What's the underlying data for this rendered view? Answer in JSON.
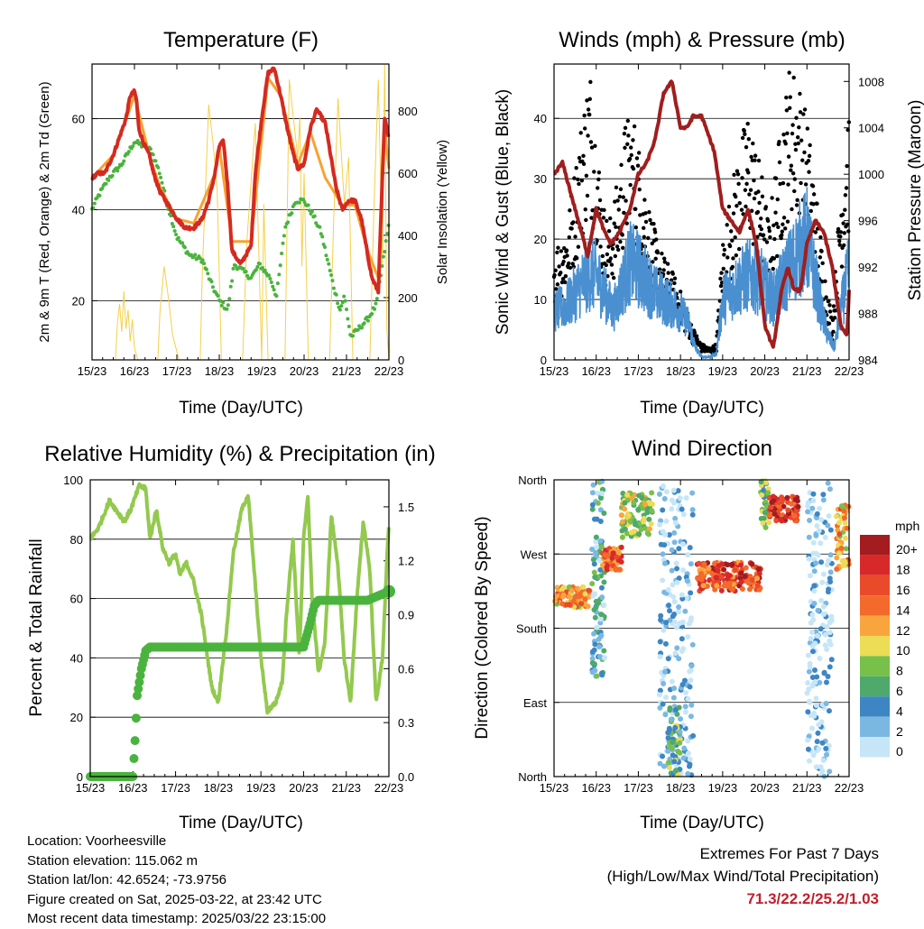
{
  "chart_data": [
    {
      "type": "line",
      "title": "Temperature (F)",
      "xlabel": "Time (Day/UTC)",
      "ylabel": "2m & 9m T (Red, Orange) & 2m Td (Green)",
      "y2label": "Solar Insolation (Yellow)",
      "x_ticks": [
        "15/23",
        "16/23",
        "17/23",
        "18/23",
        "19/23",
        "20/23",
        "21/23",
        "22/23"
      ],
      "ylim": [
        7,
        72
      ],
      "y_ticks": [
        20,
        40,
        60
      ],
      "y2lim": [
        0,
        950
      ],
      "y2_ticks": [
        0,
        200,
        400,
        600,
        800
      ],
      "colors": {
        "t2m": "#d42a20",
        "t9m": "#f7a230",
        "td": "#4ab33e",
        "solar": "#f5d04a"
      },
      "series": [
        {
          "key": "t2m",
          "x": [
            0,
            0.15,
            0.3,
            0.5,
            0.65,
            0.8,
            0.9,
            1.0,
            1.05,
            1.1,
            1.2,
            1.3,
            1.35,
            1.45,
            1.6,
            1.8,
            2.0,
            2.2,
            2.4,
            2.6,
            2.75,
            2.9,
            3.0,
            3.1,
            3.2,
            3.3,
            3.5,
            3.75,
            3.85,
            4.0,
            4.15,
            4.3,
            4.45,
            4.6,
            4.75,
            4.85,
            5.0,
            5.15,
            5.3,
            5.5,
            5.75,
            5.9,
            6.05,
            6.2,
            6.35,
            6.5,
            6.6,
            6.75,
            6.85,
            6.9,
            7.0
          ],
          "values": [
            47,
            48,
            48,
            52,
            56,
            60,
            65,
            66,
            64,
            58,
            55,
            53,
            52,
            48,
            44,
            41,
            38,
            36,
            36,
            38,
            42,
            48,
            54,
            55,
            45,
            31,
            28,
            32,
            48,
            60,
            70,
            71,
            65,
            58,
            52,
            49,
            50,
            58,
            62,
            59,
            45,
            40,
            42,
            42,
            38,
            30,
            25,
            22,
            48,
            60,
            56
          ]
        },
        {
          "key": "t9m",
          "x": [
            0,
            0.5,
            1.0,
            1.35,
            1.6,
            2.0,
            2.4,
            2.9,
            3.0,
            3.3,
            3.75,
            4.15,
            4.45,
            4.85,
            5.15,
            5.5,
            5.9,
            6.2,
            6.5,
            6.75,
            6.9,
            7.0
          ],
          "values": [
            47,
            52,
            65,
            52,
            45,
            38,
            37,
            48,
            54,
            33,
            33,
            69,
            65,
            50,
            57,
            47,
            41,
            41,
            31,
            25,
            58,
            49
          ]
        },
        {
          "key": "td",
          "x": [
            0,
            0.15,
            0.4,
            0.7,
            1.0,
            1.2,
            1.4,
            1.6,
            1.75,
            2.0,
            2.3,
            2.6,
            2.8,
            3.0,
            3.2,
            3.35,
            3.5,
            3.75,
            3.95,
            4.2,
            4.35,
            4.55,
            4.8,
            5.0,
            5.2,
            5.4,
            5.55,
            5.7,
            5.85,
            5.95,
            6.1,
            6.3,
            6.5,
            6.7,
            6.85,
            7.0
          ],
          "values": [
            40,
            43,
            47,
            50,
            55,
            54,
            53,
            48,
            42,
            34,
            30,
            29,
            24,
            20,
            18,
            28,
            27,
            25,
            28,
            25,
            21,
            36,
            42,
            42,
            39,
            35,
            29,
            23,
            18,
            21,
            12,
            14,
            16,
            19,
            28,
            37
          ]
        },
        {
          "key": "solar",
          "x": [
            0.55,
            0.6,
            0.65,
            0.7,
            0.75,
            0.8,
            0.85,
            0.9,
            0.95,
            1.0,
            1.08,
            1.55,
            1.6,
            1.7,
            1.8,
            1.9,
            2.05,
            2.55,
            2.6,
            2.75,
            2.85,
            2.95,
            3.05,
            3.55,
            3.65,
            3.85,
            4.0,
            4.05,
            4.15,
            4.55,
            4.65,
            4.85,
            4.9,
            4.95,
            5.0,
            5.1,
            5.6,
            5.7,
            5.8,
            5.95,
            6.05,
            6.15,
            6.55,
            6.65,
            6.75,
            6.85,
            6.9,
            6.95,
            7.0
          ],
          "values": [
            0,
            120,
            180,
            90,
            220,
            100,
            160,
            60,
            130,
            40,
            0,
            0,
            150,
            300,
            200,
            80,
            0,
            0,
            280,
            820,
            700,
            550,
            0,
            0,
            380,
            760,
            0,
            500,
            0,
            0,
            900,
            650,
            780,
            300,
            600,
            0,
            0,
            460,
            840,
            500,
            650,
            0,
            0,
            500,
            900,
            300,
            950,
            100,
            0
          ]
        }
      ]
    },
    {
      "type": "scatter",
      "title": "Winds (mph) & Pressure (mb)",
      "xlabel": "Time (Day/UTC)",
      "ylabel": "Sonic Wind & Gust (Blue, Black)",
      "y2label": "Station Pressure (Maroon)",
      "x_ticks": [
        "15/23",
        "16/23",
        "17/23",
        "18/23",
        "19/23",
        "20/23",
        "21/23",
        "22/23"
      ],
      "ylim": [
        0,
        49
      ],
      "y_ticks": [
        0,
        10,
        20,
        30,
        40
      ],
      "y2lim": [
        984,
        1009.5
      ],
      "y2_ticks": [
        984,
        988,
        992,
        996,
        1000,
        1004,
        1008
      ],
      "colors": {
        "wind": "#4a90d0",
        "gust": "#000000",
        "pressure": "#a01e1e"
      },
      "series": [
        {
          "key": "wind",
          "x": [
            0,
            0.3,
            0.6,
            0.8,
            1.0,
            1.2,
            1.4,
            1.6,
            1.8,
            2.0,
            2.2,
            2.4,
            2.6,
            2.8,
            3.0,
            3.2,
            3.35,
            3.5,
            3.7,
            3.85,
            4.0,
            4.3,
            4.6,
            4.9,
            5.2,
            5.5,
            5.8,
            6.0,
            6.2,
            6.35,
            6.5,
            6.65,
            6.8,
            7.0
          ],
          "values": [
            8,
            9,
            12,
            14,
            14,
            11,
            8,
            12,
            16,
            15,
            13,
            11,
            10,
            9,
            8,
            6,
            2,
            0.5,
            0.5,
            1,
            10,
            12,
            14,
            13,
            10,
            14,
            18,
            20,
            13,
            8,
            4,
            2,
            8,
            15
          ]
        },
        {
          "key": "gust",
          "x": [
            0,
            0.3,
            0.5,
            0.7,
            0.85,
            1.0,
            1.15,
            1.3,
            1.5,
            1.7,
            1.9,
            2.1,
            2.3,
            2.5,
            2.7,
            2.9,
            3.1,
            3.3,
            3.5,
            3.7,
            3.85,
            4.0,
            4.3,
            4.6,
            4.9,
            5.1,
            5.3,
            5.6,
            5.8,
            6.0,
            6.2,
            6.4,
            6.6,
            6.8,
            7.0
          ],
          "values": [
            14,
            17,
            24,
            32,
            37,
            29,
            20,
            17,
            22,
            30,
            30,
            24,
            18,
            14,
            12,
            10,
            7,
            4,
            2,
            1.5,
            2,
            15,
            24,
            31,
            24,
            17,
            26,
            37,
            35,
            30,
            22,
            12,
            5,
            22,
            32
          ]
        },
        {
          "key": "pressure",
          "x": [
            0,
            0.2,
            0.5,
            0.8,
            1.0,
            1.2,
            1.35,
            1.55,
            1.8,
            2.0,
            2.2,
            2.4,
            2.6,
            2.8,
            3.0,
            3.15,
            3.3,
            3.5,
            3.8,
            4.0,
            4.2,
            4.4,
            4.6,
            4.8,
            5.0,
            5.2,
            5.4,
            5.55,
            5.7,
            5.85,
            6.0,
            6.2,
            6.4,
            6.6,
            6.8,
            6.95,
            7.0
          ],
          "values": [
            1000,
            1001,
            997,
            993,
            997,
            995,
            994,
            995,
            997,
            1000,
            1001,
            1003,
            1007,
            1008,
            1004,
            1004,
            1005,
            1005,
            1002,
            997,
            996,
            995,
            997,
            994,
            987,
            985,
            990,
            992,
            990,
            990,
            994,
            996,
            995,
            992,
            987,
            986,
            990
          ]
        }
      ]
    },
    {
      "type": "line",
      "title": "Relative Humidity (%) & Precipitation (in)",
      "xlabel": "Time (Day/UTC)",
      "ylabel": "Percent & Total Rainfall",
      "x_ticks": [
        "15/23",
        "16/23",
        "17/23",
        "18/23",
        "19/23",
        "20/23",
        "21/23",
        "22/23"
      ],
      "ylim": [
        0,
        100
      ],
      "y_ticks": [
        0,
        20,
        40,
        60,
        80,
        100
      ],
      "y2lim": [
        0,
        1.65
      ],
      "y2_ticks": [
        "0.0",
        "0.3",
        "0.6",
        "0.9",
        "1.2",
        "1.5"
      ],
      "colors": {
        "rh": "#93c94e",
        "precip": "#4ab33e"
      },
      "series": [
        {
          "key": "rh",
          "x": [
            0,
            0.2,
            0.45,
            0.6,
            0.8,
            0.95,
            1.15,
            1.3,
            1.4,
            1.55,
            1.7,
            1.85,
            2.0,
            2.1,
            2.25,
            2.4,
            2.6,
            2.75,
            2.85,
            3.0,
            3.2,
            3.35,
            3.55,
            3.7,
            3.85,
            4.0,
            4.15,
            4.35,
            4.5,
            4.6,
            4.75,
            4.9,
            5.0,
            5.1,
            5.2,
            5.35,
            5.5,
            5.65,
            5.8,
            5.95,
            6.1,
            6.25,
            6.4,
            6.55,
            6.7,
            6.85,
            6.95,
            7.0
          ],
          "values": [
            80,
            84,
            93,
            90,
            86,
            90,
            98,
            97,
            80,
            90,
            77,
            72,
            75,
            68,
            72,
            67,
            55,
            40,
            30,
            25,
            50,
            75,
            90,
            95,
            68,
            40,
            22,
            25,
            32,
            55,
            80,
            40,
            80,
            95,
            60,
            35,
            45,
            88,
            72,
            40,
            25,
            60,
            86,
            70,
            25,
            40,
            72,
            85
          ]
        },
        {
          "key": "precip",
          "x": [
            0,
            1.0,
            1.05,
            1.1,
            1.2,
            1.3,
            1.4,
            1.6,
            2.0,
            3.0,
            4.0,
            5.0,
            5.15,
            5.25,
            5.35,
            5.6,
            6.0,
            6.5,
            7.0
          ],
          "values": [
            0,
            0,
            0.2,
            0.45,
            0.6,
            0.7,
            0.72,
            0.72,
            0.72,
            0.72,
            0.72,
            0.72,
            0.85,
            0.95,
            0.98,
            0.98,
            0.98,
            0.98,
            1.03
          ]
        }
      ]
    },
    {
      "type": "scatter",
      "title": "Wind Direction",
      "xlabel": "Time (Day/UTC)",
      "ylabel": "Direction (Colored By Speed)",
      "x_ticks": [
        "15/23",
        "16/23",
        "17/23",
        "18/23",
        "19/23",
        "20/23",
        "21/23",
        "22/23"
      ],
      "y_categories": [
        "North",
        "East",
        "South",
        "West",
        "North"
      ],
      "legend": {
        "unit": "mph",
        "labels": [
          "20+",
          "18",
          "16",
          "14",
          "12",
          "10",
          "8",
          "6",
          "4",
          "2",
          "0"
        ],
        "colors": [
          "#a31c1f",
          "#d7292a",
          "#e94a2a",
          "#f36a2c",
          "#f9a53e",
          "#eddc55",
          "#77c04a",
          "#4ea96b",
          "#3d86c3",
          "#7ab8e2",
          "#c6e6f8"
        ]
      },
      "clusters": [
        {
          "x0": 0.0,
          "x1": 0.85,
          "y0": 205,
          "y1": 230,
          "speed": 12
        },
        {
          "x0": 0.9,
          "x1": 1.2,
          "y0": 120,
          "y1": 360,
          "speed": 4
        },
        {
          "x0": 1.15,
          "x1": 1.6,
          "y0": 250,
          "y1": 280,
          "speed": 15
        },
        {
          "x0": 1.6,
          "x1": 2.35,
          "y0": 290,
          "y1": 345,
          "speed": 9
        },
        {
          "x0": 2.5,
          "x1": 3.3,
          "y0": 0,
          "y1": 360,
          "speed": 1
        },
        {
          "x0": 2.7,
          "x1": 3.0,
          "y0": 0,
          "y1": 90,
          "speed": 6
        },
        {
          "x0": 3.4,
          "x1": 4.9,
          "y0": 225,
          "y1": 260,
          "speed": 16
        },
        {
          "x0": 4.9,
          "x1": 5.1,
          "y0": 300,
          "y1": 360,
          "speed": 7
        },
        {
          "x0": 5.1,
          "x1": 5.8,
          "y0": 310,
          "y1": 340,
          "speed": 18
        },
        {
          "x0": 6.0,
          "x1": 6.6,
          "y0": 0,
          "y1": 360,
          "speed": 1
        },
        {
          "x0": 6.7,
          "x1": 7.0,
          "y0": 250,
          "y1": 330,
          "speed": 12
        }
      ]
    }
  ],
  "info": {
    "location": "Location: Voorheesville",
    "elevation": "Station elevation: 115.062 m",
    "latlon": "Station lat/lon: 42.6524; -73.9756",
    "created": "Figure created on Sat, 2025-03-22, at 23:42 UTC",
    "recent": "Most recent data timestamp: 2025/03/22 23:15:00"
  },
  "extremes": {
    "title": "Extremes For Past 7 Days",
    "subtitle": "(High/Low/Max Wind/Total Precipitation)",
    "values": "71.3/22.2/25.2/1.03"
  }
}
